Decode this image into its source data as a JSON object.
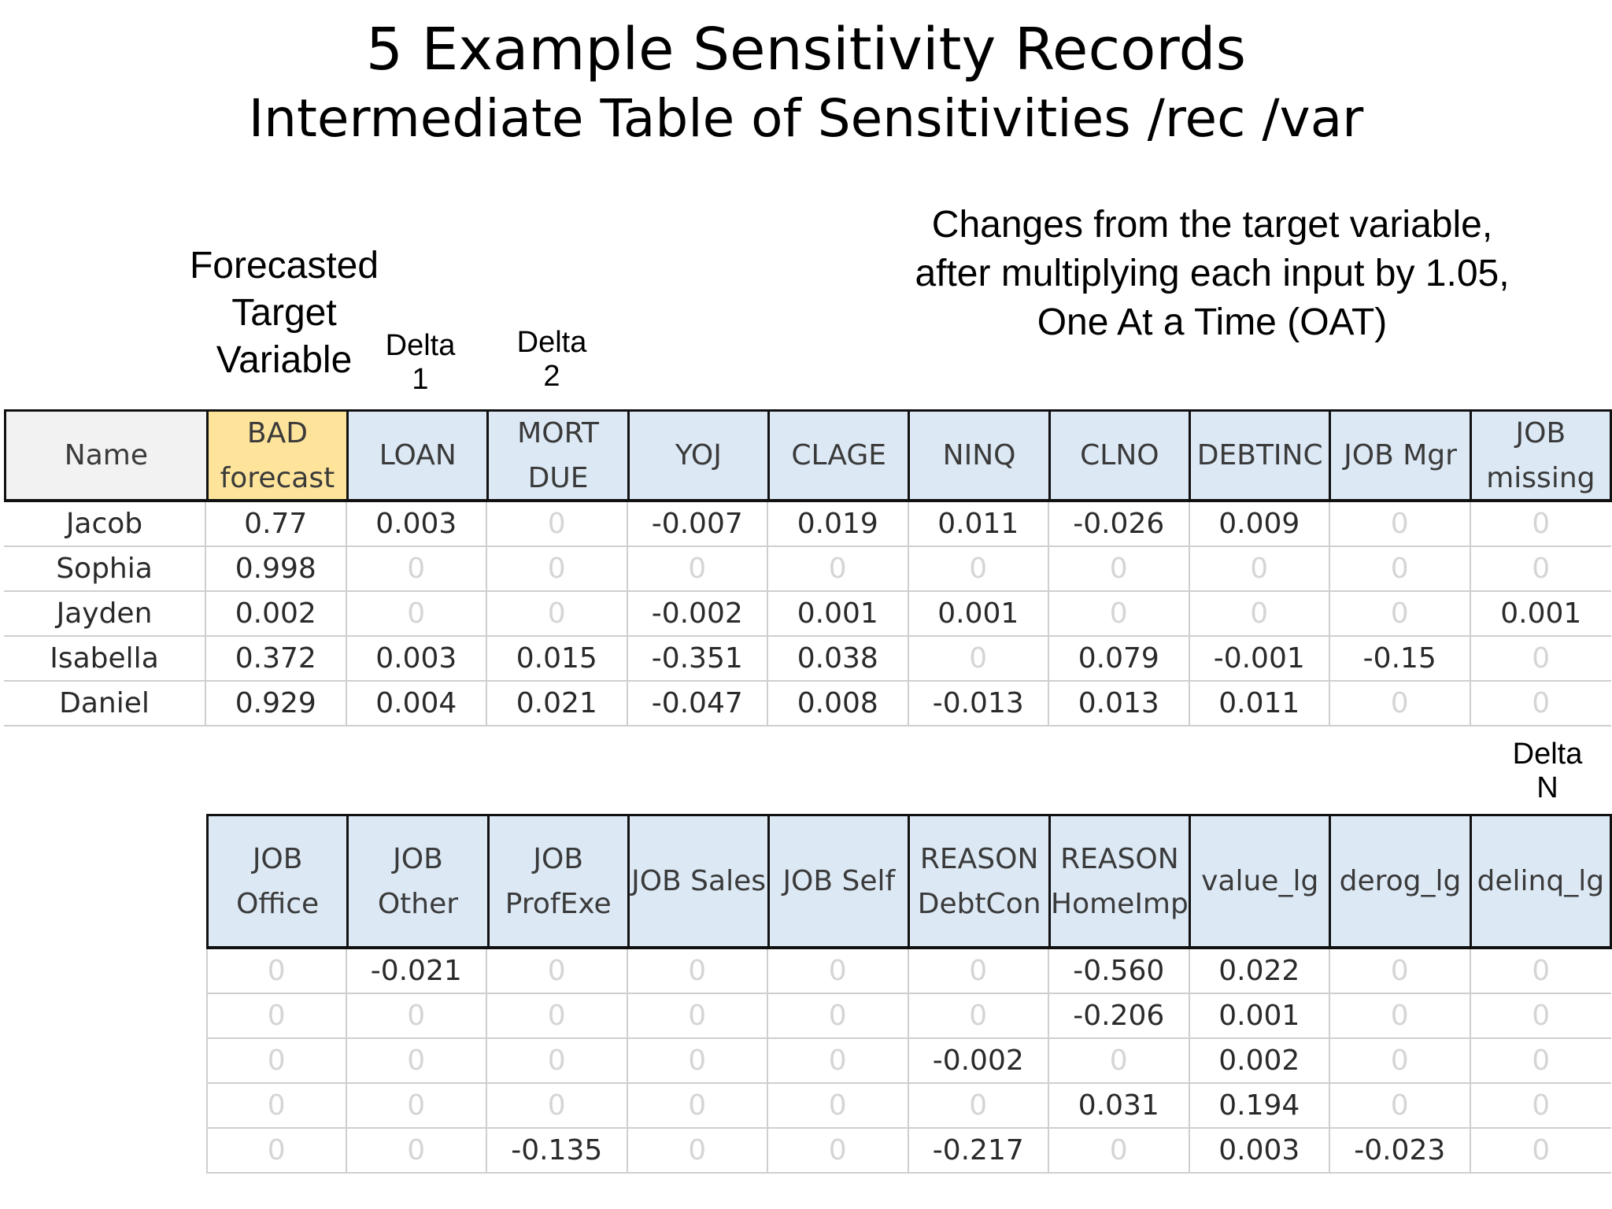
{
  "title": "5 Example Sensitivity Records",
  "subtitle": "Intermediate Table of Sensitivities /rec /var",
  "annotations": {
    "forecast": "Forecasted\nTarget\nVariable",
    "delta1": "Delta\n1",
    "delta2": "Delta\n2",
    "changes": "Changes from the target variable,\nafter multiplying each input by 1.05,\nOne At a Time (OAT)",
    "deltaN": "Delta\nN"
  },
  "table1": {
    "headers": [
      "Name",
      "BAD forecast",
      "LOAN",
      "MORT DUE",
      "YOJ",
      "CLAGE",
      "NINQ",
      "CLNO",
      "DEBTINC",
      "JOB Mgr",
      "JOB missing"
    ],
    "rows": [
      [
        "Jacob",
        "0.77",
        "0.003",
        "0",
        "-0.007",
        "0.019",
        "0.011",
        "-0.026",
        "0.009",
        "0",
        "0"
      ],
      [
        "Sophia",
        "0.998",
        "0",
        "0",
        "0",
        "0",
        "0",
        "0",
        "0",
        "0",
        "0"
      ],
      [
        "Jayden",
        "0.002",
        "0",
        "0",
        "-0.002",
        "0.001",
        "0.001",
        "0",
        "0",
        "0",
        "0.001"
      ],
      [
        "Isabella",
        "0.372",
        "0.003",
        "0.015",
        "-0.351",
        "0.038",
        "0",
        "0.079",
        "-0.001",
        "-0.15",
        "0"
      ],
      [
        "Daniel",
        "0.929",
        "0.004",
        "0.021",
        "-0.047",
        "0.008",
        "-0.013",
        "0.013",
        "0.011",
        "0",
        "0"
      ]
    ]
  },
  "table2": {
    "headers": [
      "JOB Office",
      "JOB Other",
      "JOB ProfExe",
      "JOB Sales",
      "JOB Self",
      "REASON DebtCon",
      "REASON HomeImp",
      "value_lg",
      "derog_lg",
      "delinq_lg"
    ],
    "rows": [
      [
        "0",
        "-0.021",
        "0",
        "0",
        "0",
        "0",
        "-0.560",
        "0.022",
        "0",
        "0"
      ],
      [
        "0",
        "0",
        "0",
        "0",
        "0",
        "0",
        "-0.206",
        "0.001",
        "0",
        "0"
      ],
      [
        "0",
        "0",
        "0",
        "0",
        "0",
        "-0.002",
        "0",
        "0.002",
        "0",
        "0"
      ],
      [
        "0",
        "0",
        "0",
        "0",
        "0",
        "0",
        "0.031",
        "0.194",
        "0",
        "0"
      ],
      [
        "0",
        "0",
        "-0.135",
        "0",
        "0",
        "-0.217",
        "0",
        "0.003",
        "-0.023",
        "0"
      ]
    ]
  },
  "colors": {
    "header_blue": "#dce9f5",
    "header_gray": "#f2f2f2",
    "header_yellow": "#fde49a",
    "zero_gray": "#d5d5d5"
  }
}
